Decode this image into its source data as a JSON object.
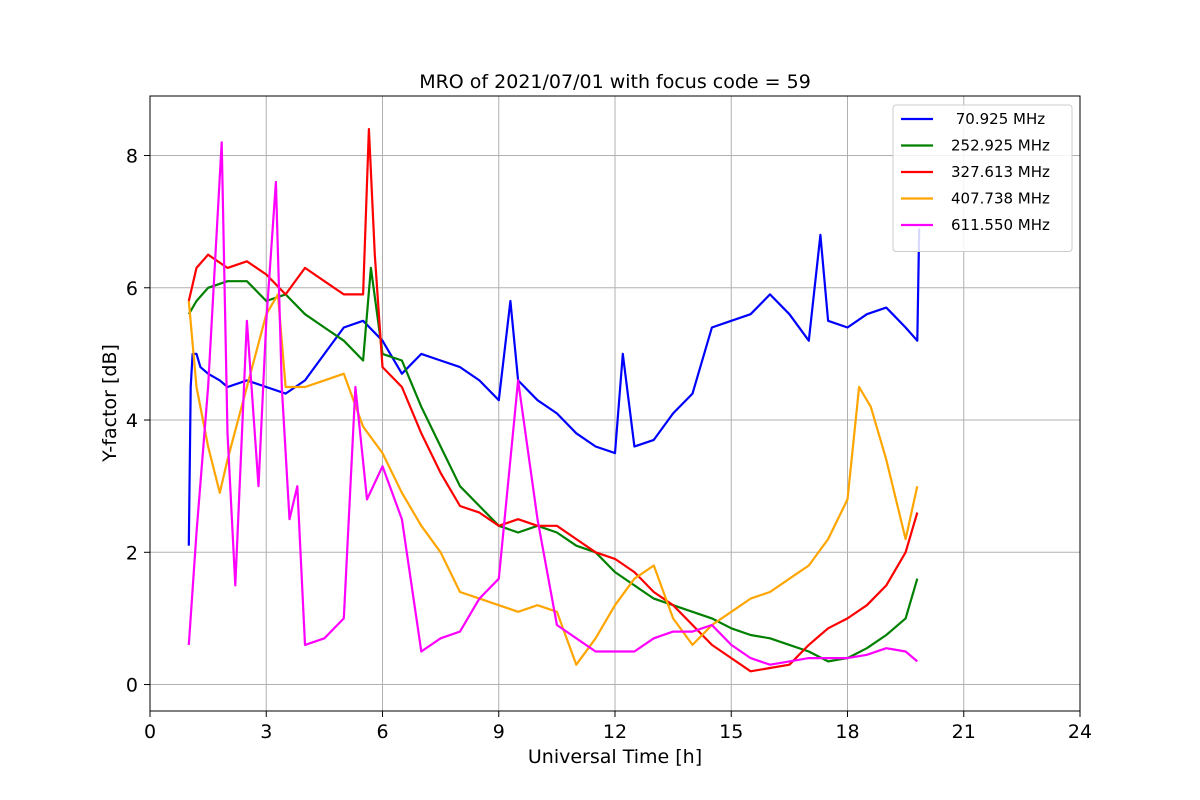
{
  "chart_data": {
    "type": "line",
    "title": "MRO of 2021/07/01 with focus code = 59",
    "xlabel": "Universal Time [h]",
    "ylabel": "Y-factor [dB]",
    "xlim": [
      0,
      24
    ],
    "ylim": [
      -0.4,
      8.9
    ],
    "xticks": [
      0,
      3,
      6,
      9,
      12,
      15,
      18,
      21,
      24
    ],
    "yticks": [
      0,
      2,
      4,
      6,
      8
    ],
    "grid": true,
    "legend_position": "top-right",
    "series": [
      {
        "name": " 70.925 MHz",
        "color": "#0000ff",
        "x": [
          1.0,
          1.05,
          1.1,
          1.2,
          1.3,
          1.5,
          1.8,
          2.0,
          2.5,
          3.0,
          3.5,
          4.0,
          4.5,
          5.0,
          5.5,
          6.0,
          6.5,
          7.0,
          7.5,
          8.0,
          8.5,
          9.0,
          9.3,
          9.5,
          10.0,
          10.5,
          11.0,
          11.5,
          12.0,
          12.2,
          12.5,
          13.0,
          13.5,
          14.0,
          14.5,
          15.0,
          15.5,
          16.0,
          16.5,
          17.0,
          17.3,
          17.5,
          18.0,
          18.5,
          19.0,
          19.5,
          19.8,
          19.85
        ],
        "y": [
          2.1,
          4.5,
          5.0,
          5.0,
          4.8,
          4.7,
          4.6,
          4.5,
          4.6,
          4.5,
          4.4,
          4.6,
          5.0,
          5.4,
          5.5,
          5.2,
          4.7,
          5.0,
          4.9,
          4.8,
          4.6,
          4.3,
          5.8,
          4.6,
          4.3,
          4.1,
          3.8,
          3.6,
          3.5,
          5.0,
          3.6,
          3.7,
          4.1,
          4.4,
          5.4,
          5.5,
          5.6,
          5.9,
          5.6,
          5.2,
          6.8,
          5.5,
          5.4,
          5.6,
          5.7,
          5.4,
          5.2,
          6.9
        ]
      },
      {
        "name": "252.925 MHz",
        "color": "#008000",
        "x": [
          1.0,
          1.2,
          1.5,
          2.0,
          2.5,
          3.0,
          3.5,
          4.0,
          4.5,
          5.0,
          5.5,
          5.7,
          6.0,
          6.5,
          7.0,
          7.5,
          8.0,
          8.5,
          9.0,
          9.5,
          10.0,
          10.5,
          11.0,
          11.5,
          12.0,
          12.5,
          13.0,
          13.5,
          14.0,
          14.5,
          15.0,
          15.5,
          16.0,
          16.5,
          17.0,
          17.5,
          18.0,
          18.5,
          19.0,
          19.5,
          19.8
        ],
        "y": [
          5.6,
          5.8,
          6.0,
          6.1,
          6.1,
          5.8,
          5.9,
          5.6,
          5.4,
          5.2,
          4.9,
          6.3,
          5.0,
          4.9,
          4.2,
          3.6,
          3.0,
          2.7,
          2.4,
          2.3,
          2.4,
          2.3,
          2.1,
          2.0,
          1.7,
          1.5,
          1.3,
          1.2,
          1.1,
          1.0,
          0.85,
          0.75,
          0.7,
          0.6,
          0.5,
          0.35,
          0.4,
          0.55,
          0.75,
          1.0,
          1.6
        ]
      },
      {
        "name": "327.613 MHz",
        "color": "#ff0000",
        "x": [
          1.0,
          1.2,
          1.5,
          2.0,
          2.5,
          3.0,
          3.5,
          4.0,
          4.5,
          5.0,
          5.5,
          5.65,
          5.8,
          6.0,
          6.5,
          7.0,
          7.5,
          8.0,
          8.5,
          9.0,
          9.5,
          10.0,
          10.5,
          11.0,
          11.5,
          12.0,
          12.5,
          13.0,
          13.5,
          14.0,
          14.5,
          15.0,
          15.5,
          16.0,
          16.5,
          17.0,
          17.5,
          18.0,
          18.5,
          19.0,
          19.5,
          19.8
        ],
        "y": [
          5.8,
          6.3,
          6.5,
          6.3,
          6.4,
          6.2,
          5.9,
          6.3,
          6.1,
          5.9,
          5.9,
          8.4,
          6.5,
          4.8,
          4.5,
          3.8,
          3.2,
          2.7,
          2.6,
          2.4,
          2.5,
          2.4,
          2.4,
          2.2,
          2.0,
          1.9,
          1.7,
          1.4,
          1.2,
          0.9,
          0.6,
          0.4,
          0.2,
          0.25,
          0.3,
          0.6,
          0.85,
          1.0,
          1.2,
          1.5,
          2.0,
          2.6
        ]
      },
      {
        "name": "407.738 MHz",
        "color": "#ffa500",
        "x": [
          1.0,
          1.2,
          1.5,
          1.8,
          2.0,
          2.5,
          3.0,
          3.3,
          3.5,
          4.0,
          4.5,
          5.0,
          5.5,
          6.0,
          6.5,
          7.0,
          7.5,
          8.0,
          8.5,
          9.0,
          9.5,
          10.0,
          10.5,
          11.0,
          11.5,
          12.0,
          12.5,
          13.0,
          13.5,
          14.0,
          14.5,
          15.0,
          15.5,
          16.0,
          16.5,
          17.0,
          17.5,
          18.0,
          18.3,
          18.6,
          19.0,
          19.5,
          19.8
        ],
        "y": [
          5.8,
          4.5,
          3.6,
          2.9,
          3.4,
          4.5,
          5.6,
          5.9,
          4.5,
          4.5,
          4.6,
          4.7,
          3.9,
          3.5,
          2.9,
          2.4,
          2.0,
          1.4,
          1.3,
          1.2,
          1.1,
          1.2,
          1.1,
          0.3,
          0.7,
          1.2,
          1.6,
          1.8,
          1.0,
          0.6,
          0.9,
          1.1,
          1.3,
          1.4,
          1.6,
          1.8,
          2.2,
          2.8,
          4.5,
          4.2,
          3.4,
          2.2,
          3.0
        ]
      },
      {
        "name": "611.550 MHz",
        "color": "#ff00ff",
        "x": [
          1.0,
          1.2,
          1.5,
          1.85,
          2.0,
          2.2,
          2.5,
          2.8,
          3.0,
          3.25,
          3.4,
          3.6,
          3.8,
          4.0,
          4.5,
          5.0,
          5.3,
          5.6,
          6.0,
          6.5,
          7.0,
          7.5,
          8.0,
          8.5,
          9.0,
          9.5,
          10.0,
          10.5,
          11.0,
          11.5,
          12.0,
          12.5,
          13.0,
          13.5,
          14.0,
          14.5,
          15.0,
          15.5,
          16.0,
          16.5,
          17.0,
          17.5,
          18.0,
          18.5,
          19.0,
          19.5,
          19.8
        ],
        "y": [
          0.6,
          2.3,
          4.5,
          8.2,
          3.8,
          1.5,
          5.5,
          3.0,
          5.5,
          7.6,
          4.5,
          2.5,
          3.0,
          0.6,
          0.7,
          1.0,
          4.5,
          2.8,
          3.3,
          2.5,
          0.5,
          0.7,
          0.8,
          1.3,
          1.6,
          4.6,
          2.5,
          0.9,
          0.7,
          0.5,
          0.5,
          0.5,
          0.7,
          0.8,
          0.8,
          0.9,
          0.6,
          0.4,
          0.3,
          0.35,
          0.4,
          0.4,
          0.4,
          0.45,
          0.55,
          0.5,
          0.35
        ]
      }
    ]
  }
}
